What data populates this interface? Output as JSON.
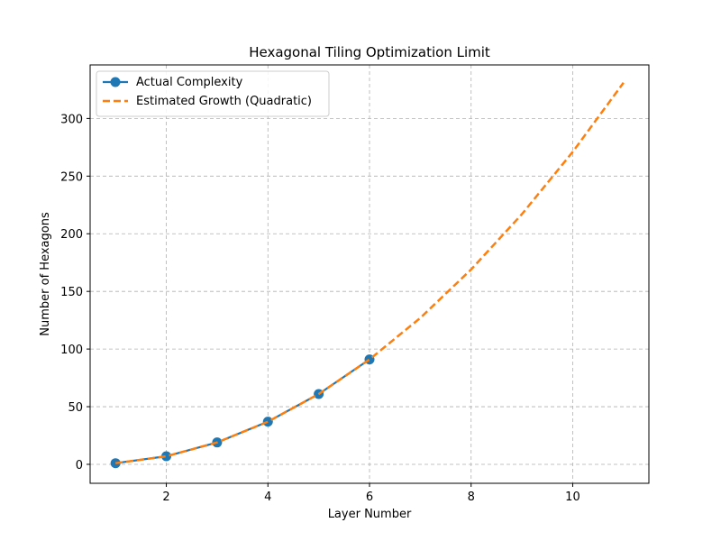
{
  "chart_data": {
    "type": "line",
    "title": "Hexagonal Tiling Optimization Limit",
    "xlabel": "Layer Number",
    "ylabel": "Number of Hexagons",
    "xlim": [
      0.5,
      11.5
    ],
    "ylim": [
      -16.45,
      346.45
    ],
    "xticks": [
      2,
      4,
      6,
      8,
      10
    ],
    "yticks": [
      0,
      50,
      100,
      150,
      200,
      250,
      300
    ],
    "grid": true,
    "legend_position": "top-left",
    "series": [
      {
        "name": "Actual Complexity",
        "style": "solid-markers",
        "color": "#1f77b4",
        "x": [
          1,
          2,
          3,
          4,
          5,
          6
        ],
        "y": [
          1,
          7,
          19,
          37,
          61,
          91
        ]
      },
      {
        "name": "Estimated Growth (Quadratic)",
        "style": "dashed",
        "color": "#ff7f0e",
        "x": [
          1,
          2,
          3,
          4,
          5,
          6,
          7,
          8,
          9,
          10,
          11
        ],
        "y": [
          1,
          7,
          19,
          37,
          61,
          91,
          127,
          169,
          217,
          271,
          331
        ]
      }
    ]
  }
}
